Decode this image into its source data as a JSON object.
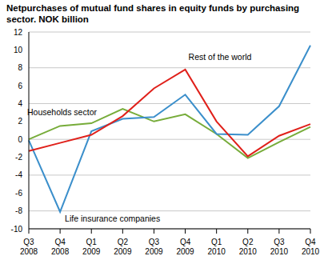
{
  "chart_data": {
    "type": "line",
    "title": "Netpurchases of mutual fund shares in equity funds by purchasing sector. NOK billion",
    "categories": [
      "Q3 2008",
      "Q4 2008",
      "Q1 2009",
      "Q2 2009",
      "Q3 2009",
      "Q4 2009",
      "Q1 2010",
      "Q2 2010",
      "Q3 2010",
      "Q4 2010"
    ],
    "series": [
      {
        "name": "Households sector",
        "color": "#77ac3a",
        "values": [
          0,
          1.5,
          1.8,
          3.4,
          2.0,
          2.8,
          0.6,
          -2.1,
          -0.3,
          1.4
        ]
      },
      {
        "name": "Life insurance companies",
        "color": "#3b8fcb",
        "values": [
          -0.1,
          -8.1,
          0.9,
          2.3,
          2.5,
          5.0,
          0.6,
          0.5,
          3.7,
          10.5
        ]
      },
      {
        "name": "Rest of the world",
        "color": "#e0201a",
        "values": [
          -1.3,
          -0.4,
          0.5,
          2.6,
          5.7,
          7.8,
          2.0,
          -1.9,
          0.4,
          1.7
        ]
      }
    ],
    "ylim": [
      -10,
      12
    ],
    "yticks": [
      -10,
      -8,
      -6,
      -4,
      -2,
      0,
      2,
      4,
      6,
      8,
      10,
      12
    ],
    "grid": true
  }
}
